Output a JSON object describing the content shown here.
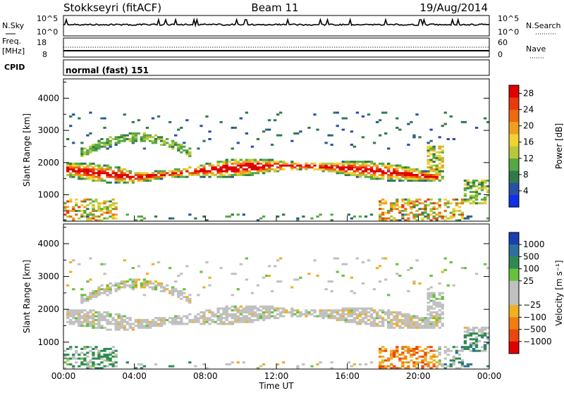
{
  "header": {
    "station": "Stokkseyri (fitACF)",
    "beam": "Beam 11",
    "date": "19/Aug/2014"
  },
  "top_panels": {
    "nsky": {
      "label": "N.Sky",
      "ticks": [
        "10^5",
        "10^0"
      ]
    },
    "nsearch": {
      "label": "N.Search",
      "ticks": [
        "10^5",
        "10^0"
      ]
    },
    "freq": {
      "label_line1": "Freq.",
      "label_line2": "[MHz]",
      "ticks": [
        "18",
        "8"
      ]
    },
    "nave": {
      "label": "Nave",
      "ticks": [
        "60",
        "0"
      ]
    },
    "cpid": {
      "label": "CPID",
      "value": "normal (fast) 151"
    }
  },
  "colors": {
    "power_scale": [
      "#1030e8",
      "#2a4fa8",
      "#2f7a4a",
      "#55a843",
      "#b8c83a",
      "#f2d230",
      "#f0a020",
      "#ec6a10",
      "#e83a10",
      "#e00000"
    ],
    "velocity_scale": [
      "#1a3fb0",
      "#2e6f9e",
      "#2f8a52",
      "#66c23a",
      "#c0c0c0",
      "#c0c0c0",
      "#f0b020",
      "#f07d10",
      "#e84810",
      "#e00000"
    ]
  },
  "chart_data": [
    {
      "type": "heatmap",
      "name": "power",
      "xlabel": "Time UT",
      "ylabel": "Slant Range [km]",
      "x_ticks": [
        "00:00",
        "04:00",
        "08:00",
        "12:00",
        "16:00",
        "20:00",
        "00:00"
      ],
      "xlim_hours": [
        0,
        24
      ],
      "y_ticks": [
        1000,
        2000,
        3000,
        4000
      ],
      "ylim": [
        180,
        4600
      ],
      "colorbar": {
        "label": "Power [dB]",
        "ticks": [
          4,
          8,
          12,
          16,
          20,
          24,
          28
        ],
        "range": [
          0,
          30
        ]
      }
    },
    {
      "type": "heatmap",
      "name": "velocity",
      "xlabel": "Time UT",
      "ylabel": "Slant Range [km]",
      "x_ticks": [
        "00:00",
        "04:00",
        "08:00",
        "12:00",
        "16:00",
        "20:00",
        "00:00"
      ],
      "xlim_hours": [
        0,
        24
      ],
      "y_ticks": [
        1000,
        2000,
        3000,
        4000
      ],
      "ylim": [
        180,
        4600
      ],
      "colorbar": {
        "label": "Velocity [m s⁻¹]",
        "ticks": [
          -1000,
          -500,
          -100,
          -25,
          25,
          100,
          500,
          1000
        ]
      }
    }
  ]
}
